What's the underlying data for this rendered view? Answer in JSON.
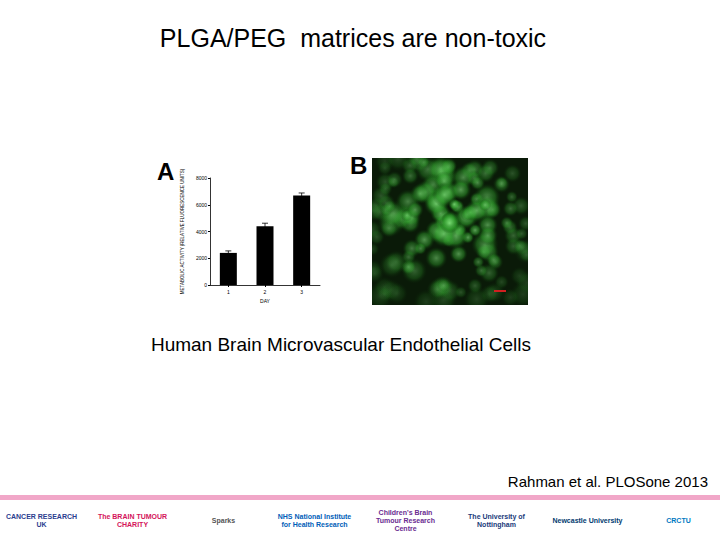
{
  "slide": {
    "title": "PLGA/PEG  matrices are non-toxic",
    "panel_labels": [
      "A",
      "B"
    ],
    "caption": "Human Brain Microvascular Endothelial Cells",
    "citation": "Rahman et al. PLOSone 2013",
    "footer_logos": [
      "CANCER RESEARCH UK",
      "The BRAIN TUMOUR CHARITY",
      "Sparks",
      "NHS National Institute for Health Research",
      "Children's Brain Tumour Research Centre",
      "The University of Nottingham",
      "Newcastle University",
      "CRCTU"
    ]
  },
  "chart_data": {
    "type": "bar",
    "y_label": "METABOLIC ACTIVITY (RELATIVE FLUORESCENCE UNITS)",
    "x_label": "DAY",
    "categories": [
      "1",
      "2",
      "3"
    ],
    "values": [
      2400,
      4400,
      6700
    ],
    "errors": [
      150,
      220,
      180
    ],
    "color": "#000000",
    "ylim": [
      0,
      8000
    ],
    "yticks": [
      0,
      2000,
      4000,
      6000,
      8000
    ],
    "grid": false
  }
}
